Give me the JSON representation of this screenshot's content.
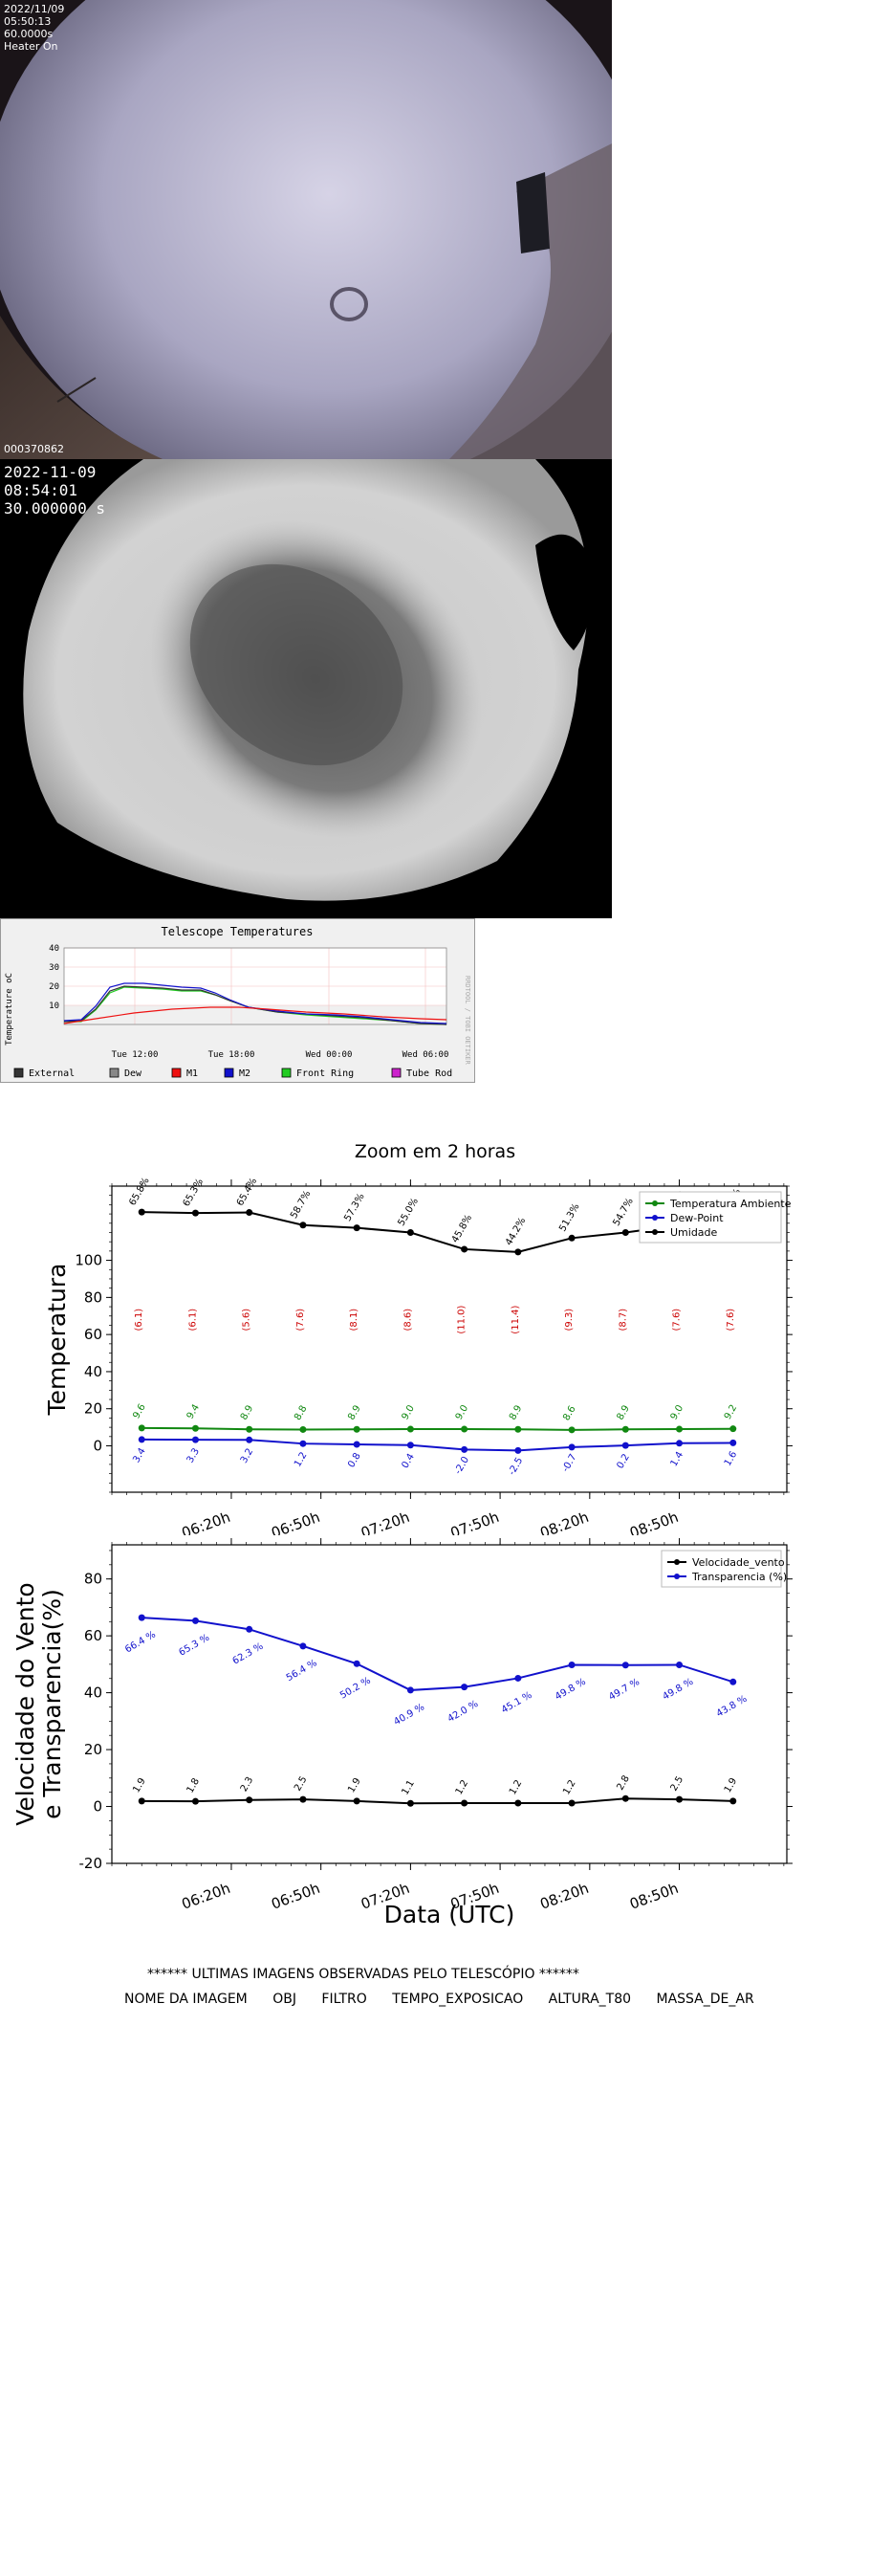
{
  "camera1": {
    "date": "2022/11/09",
    "time": "05:50:13",
    "exposure": "60.0000s",
    "heater": "Heater On",
    "image_id": "000370862"
  },
  "camera2": {
    "date": "2022-11-09",
    "time": "08:54:01",
    "exposure": "30.000000 s"
  },
  "telescope_chart": {
    "title": "Telescope Temperatures",
    "ylabel": "Temperature oC",
    "side_label": "RRDTOOL / TOBI OETIKER",
    "yticks": [
      "40",
      "30",
      "20",
      "10"
    ],
    "xticks": [
      "Tue 12:00",
      "Tue 18:00",
      "Wed 00:00",
      "Wed 06:00"
    ],
    "legend": [
      {
        "name": "External",
        "color": "#333333"
      },
      {
        "name": "Dew",
        "color": "#888888"
      },
      {
        "name": "M1",
        "color": "#ee1111"
      },
      {
        "name": "M2",
        "color": "#1111cc"
      },
      {
        "name": "Front Ring",
        "color": "#22cc22"
      },
      {
        "name": "Tube Rod",
        "color": "#cc22cc"
      }
    ]
  },
  "zoom_title": "Zoom em 2 horas",
  "chart_data": [
    {
      "type": "line",
      "ylabel": "Temperatura",
      "ylim": [
        -25,
        140
      ],
      "yticks": [
        0,
        20,
        40,
        60,
        80,
        100
      ],
      "x": [
        "05:50",
        "06:08",
        "06:26",
        "06:44",
        "07:02",
        "07:20",
        "07:38",
        "07:56",
        "08:14",
        "08:32",
        "08:50",
        "09:08"
      ],
      "xticks": [
        "06:20h",
        "06:50h",
        "07:20h",
        "07:50h",
        "08:20h",
        "08:50h"
      ],
      "legend_position": "top-right",
      "series": [
        {
          "name": "Temperatura Ambiente",
          "color": "#118811",
          "values": [
            9.6,
            9.4,
            8.9,
            8.8,
            8.9,
            9.0,
            9.0,
            8.9,
            8.6,
            8.9,
            9.0,
            9.2
          ],
          "labels": [
            "9.6",
            "9.4",
            "8.9",
            "8.8",
            "8.9",
            "9.0",
            "9.0",
            "8.9",
            "8.6",
            "8.9",
            "9.0",
            "9.2"
          ]
        },
        {
          "name": "Dew-Point",
          "color": "#1111cc",
          "values": [
            3.4,
            3.3,
            3.2,
            1.2,
            0.8,
            0.4,
            -2.0,
            -2.5,
            -0.7,
            0.2,
            1.4,
            1.6
          ],
          "labels": [
            "3.4",
            "3.3",
            "3.2",
            "1.2",
            "0.8",
            "0.4",
            "-2.0",
            "-2.5",
            "-0.7",
            "0.2",
            "1.4",
            "1.6"
          ]
        },
        {
          "name": "Umidade",
          "color": "#000000",
          "values": [
            126,
            125.5,
            125.8,
            119,
            117.5,
            115,
            106,
            104.5,
            112,
            115,
            119,
            120
          ],
          "labels": [
            "65.8%",
            "65.3%",
            "65.4%",
            "58.7%",
            "57.3%",
            "55.0%",
            "45.8%",
            "44.2%",
            "51.3%",
            "54.7%",
            "58.8%",
            "59.5%"
          ]
        }
      ],
      "annotations": {
        "color": "#cc0000",
        "labels": [
          "(6.1)",
          "(6.1)",
          "(5.6)",
          "(7.6)",
          "(8.1)",
          "(8.6)",
          "(11.0)",
          "(11.4)",
          "(9.3)",
          "(8.7)",
          "(7.6)",
          "(7.6)"
        ]
      }
    },
    {
      "type": "line",
      "ylabel": "Velocidade do Vento\ne Transparencia(%)",
      "xlabel": "Data (UTC)",
      "ylim": [
        -20,
        92
      ],
      "yticks": [
        -20,
        0,
        20,
        40,
        60,
        80
      ],
      "x": [
        "05:50",
        "06:08",
        "06:26",
        "06:44",
        "07:02",
        "07:20",
        "07:38",
        "07:56",
        "08:14",
        "08:32",
        "08:50",
        "09:08"
      ],
      "xticks": [
        "06:20h",
        "06:50h",
        "07:20h",
        "07:50h",
        "08:20h",
        "08:50h"
      ],
      "legend_position": "top-right",
      "series": [
        {
          "name": "Velocidade_vento",
          "color": "#000000",
          "values": [
            1.9,
            1.8,
            2.3,
            2.5,
            1.9,
            1.1,
            1.2,
            1.2,
            1.2,
            2.8,
            2.5,
            1.9
          ],
          "labels": [
            "1.9",
            "1.8",
            "2.3",
            "2.5",
            "1.9",
            "1.1",
            "1.2",
            "1.2",
            "1.2",
            "2.8",
            "2.5",
            "1.9"
          ]
        },
        {
          "name": "Transparencia (%)",
          "color": "#1111cc",
          "values": [
            66.4,
            65.3,
            62.3,
            56.4,
            50.2,
            40.9,
            42.0,
            45.1,
            49.8,
            49.7,
            49.8,
            43.8
          ],
          "labels": [
            "66.4 %",
            "65.3 %",
            "62.3 %",
            "56.4 %",
            "50.2 %",
            "40.9 %",
            "42.0 %",
            "45.1 %",
            "49.8 %",
            "49.7 %",
            "49.8 %",
            "43.8 %"
          ]
        }
      ]
    }
  ],
  "observations": {
    "title": "****** ULTIMAS IMAGENS OBSERVADAS PELO TELESCÓPIO ******",
    "columns": [
      "NOME DA IMAGEM",
      "OBJ",
      "FILTRO",
      "TEMPO_EXPOSICAO",
      "ALTURA_T80",
      "MASSA_DE_AR"
    ]
  }
}
